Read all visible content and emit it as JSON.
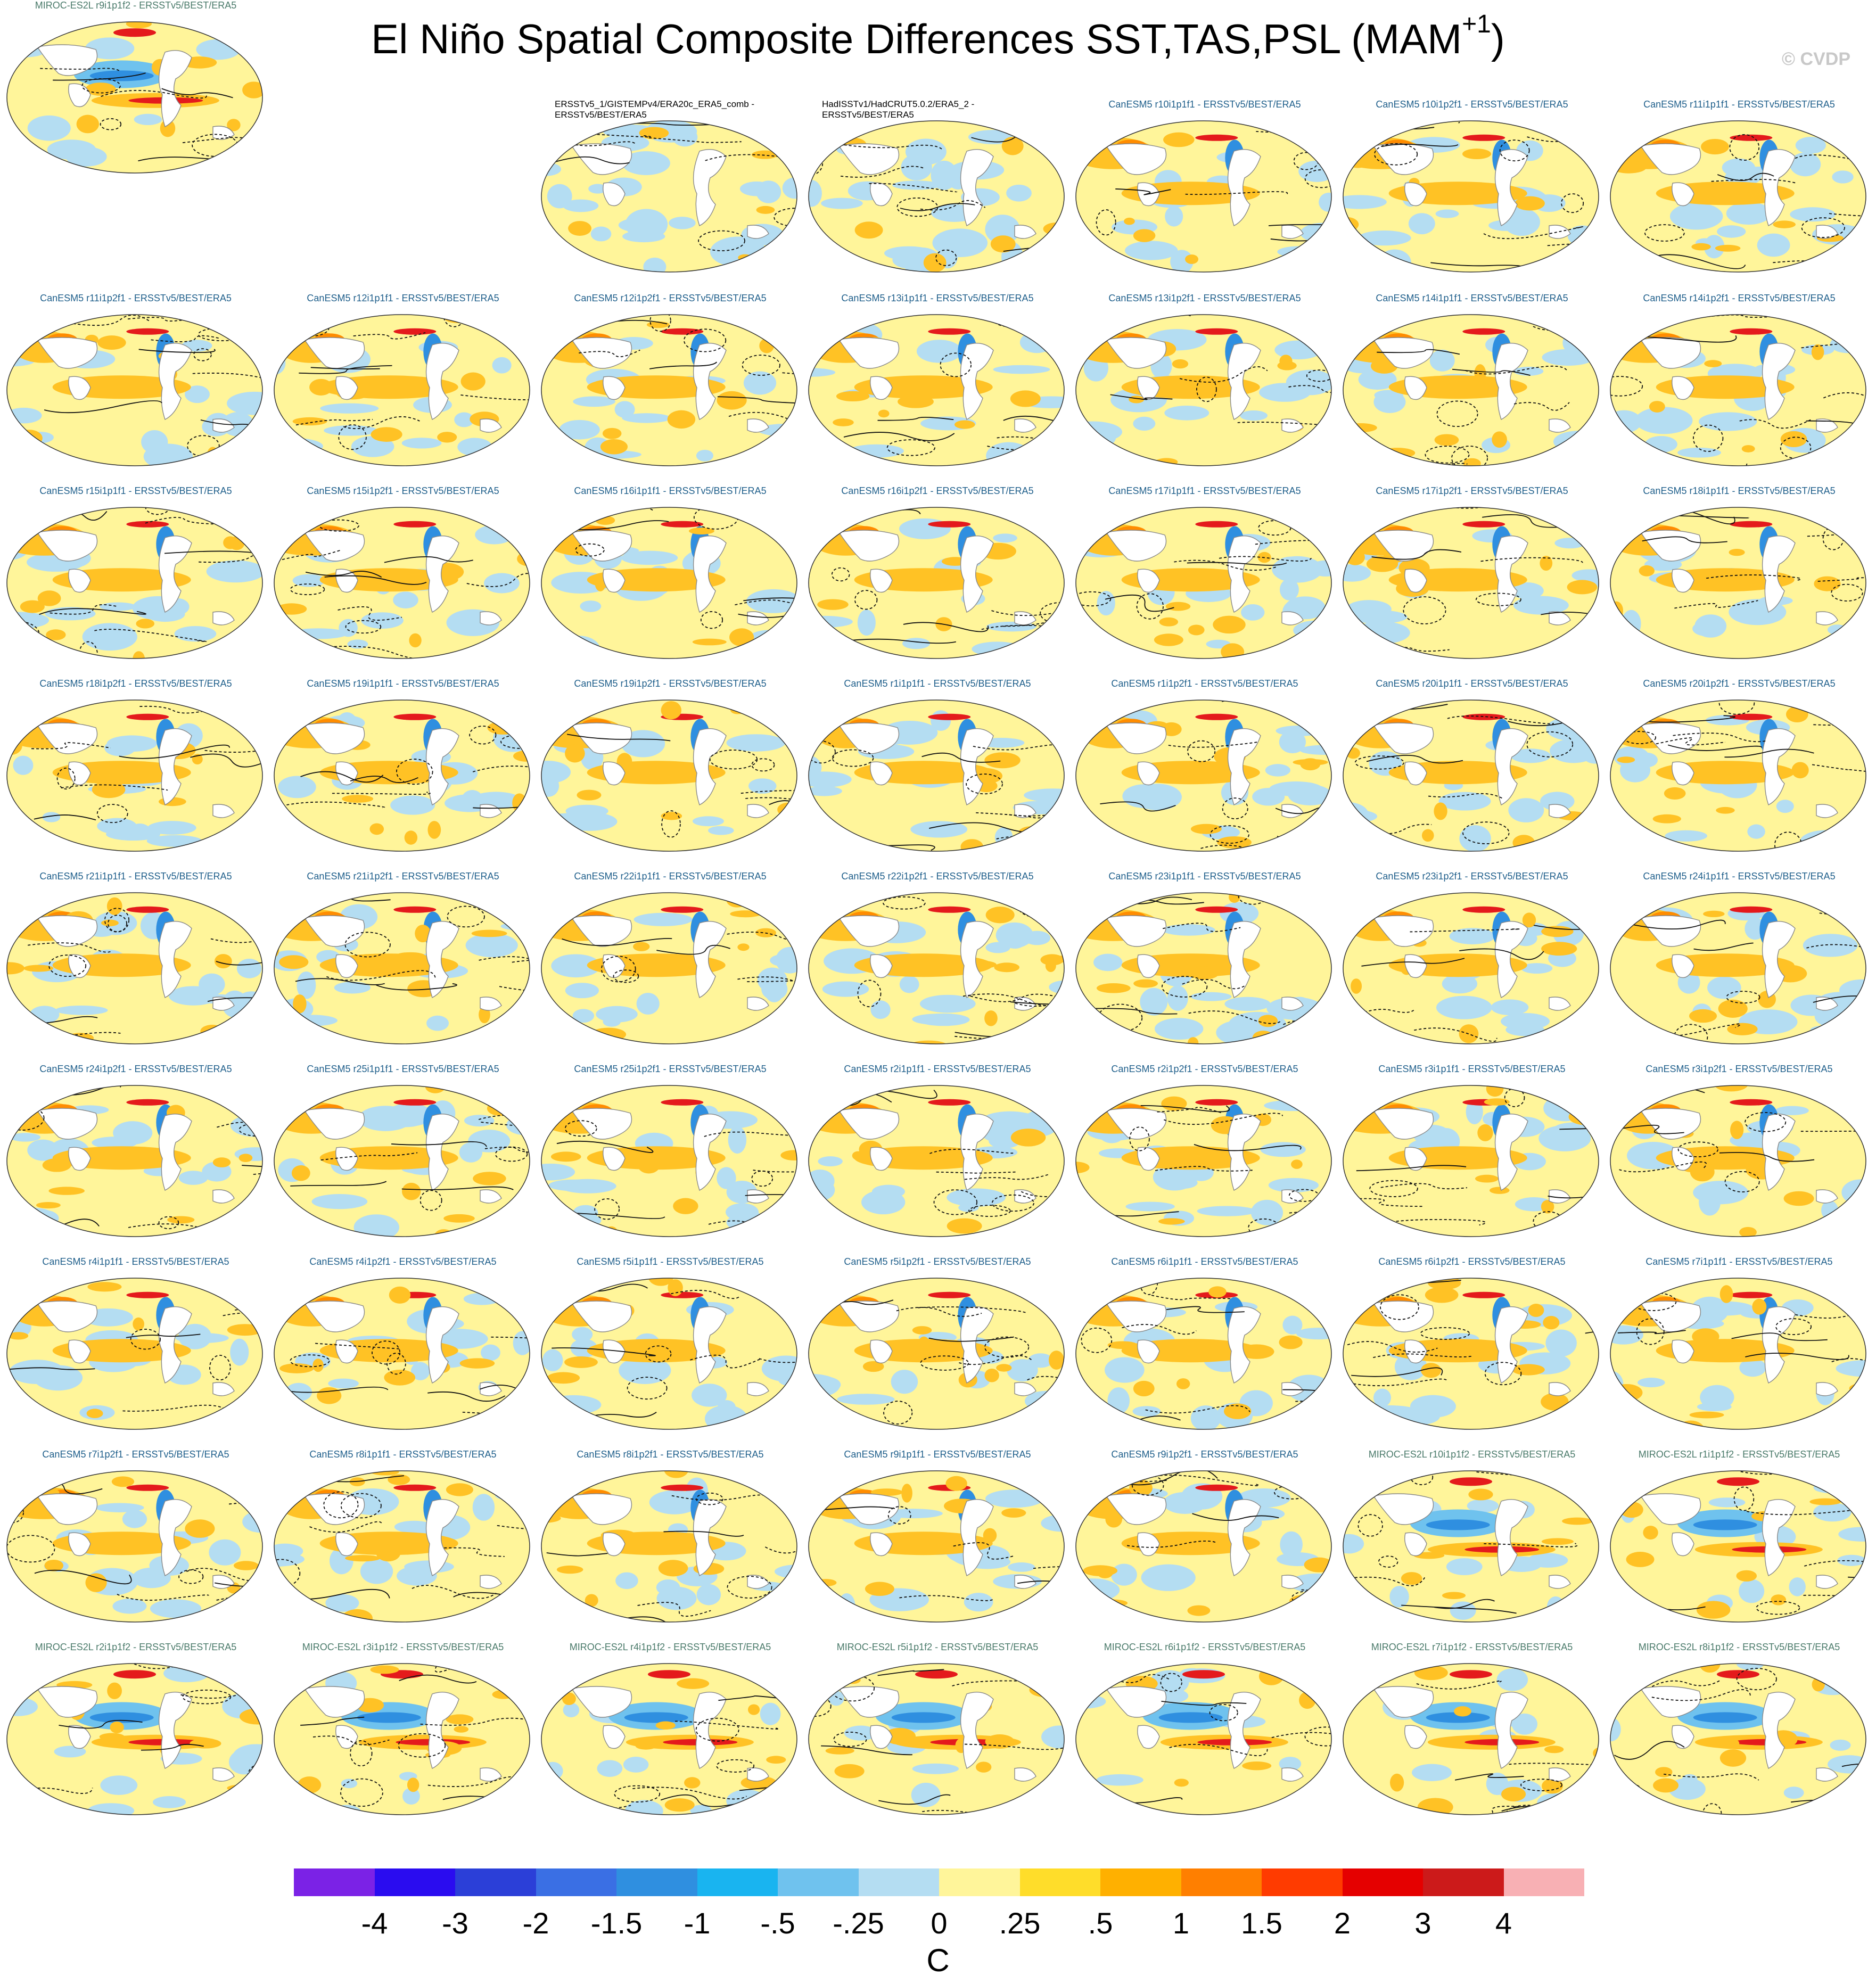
{
  "title_main": "El Niño Spatial Composite Differences SST,TAS,PSL (MAM",
  "title_sup": "+1",
  "title_close": ")",
  "watermark": "© CVDP",
  "panels": [
    {
      "label": "ERSSTv5_1/GISTEMPv4/ERA20c_ERA5_comb - ERSSTv5/BEST/ERA5",
      "group": "obs",
      "style": "obs"
    },
    {
      "label": "HadISSTv1/HadCRUT5.0.2/ERA5_2 - ERSSTv5/BEST/ERA5",
      "group": "obs",
      "style": "obs"
    },
    {
      "label": "CanESM5 r10i1p1f1 - ERSSTv5/BEST/ERA5",
      "group": "can",
      "style": "can"
    },
    {
      "label": "CanESM5 r10i1p2f1 - ERSSTv5/BEST/ERA5",
      "group": "can",
      "style": "can"
    },
    {
      "label": "CanESM5 r11i1p1f1 - ERSSTv5/BEST/ERA5",
      "group": "can",
      "style": "can"
    },
    {
      "label": "CanESM5 r11i1p2f1 - ERSSTv5/BEST/ERA5",
      "group": "can",
      "style": "can"
    },
    {
      "label": "CanESM5 r12i1p1f1 - ERSSTv5/BEST/ERA5",
      "group": "can",
      "style": "can"
    },
    {
      "label": "CanESM5 r12i1p2f1 - ERSSTv5/BEST/ERA5",
      "group": "can",
      "style": "can"
    },
    {
      "label": "CanESM5 r13i1p1f1 - ERSSTv5/BEST/ERA5",
      "group": "can",
      "style": "can"
    },
    {
      "label": "CanESM5 r13i1p2f1 - ERSSTv5/BEST/ERA5",
      "group": "can",
      "style": "can"
    },
    {
      "label": "CanESM5 r14i1p1f1 - ERSSTv5/BEST/ERA5",
      "group": "can",
      "style": "can"
    },
    {
      "label": "CanESM5 r14i1p2f1 - ERSSTv5/BEST/ERA5",
      "group": "can",
      "style": "can"
    },
    {
      "label": "CanESM5 r15i1p1f1 - ERSSTv5/BEST/ERA5",
      "group": "can",
      "style": "can"
    },
    {
      "label": "CanESM5 r15i1p2f1 - ERSSTv5/BEST/ERA5",
      "group": "can",
      "style": "can"
    },
    {
      "label": "CanESM5 r16i1p1f1 - ERSSTv5/BEST/ERA5",
      "group": "can",
      "style": "can"
    },
    {
      "label": "CanESM5 r16i1p2f1 - ERSSTv5/BEST/ERA5",
      "group": "can",
      "style": "can"
    },
    {
      "label": "CanESM5 r17i1p1f1 - ERSSTv5/BEST/ERA5",
      "group": "can",
      "style": "can"
    },
    {
      "label": "CanESM5 r17i1p2f1 - ERSSTv5/BEST/ERA5",
      "group": "can",
      "style": "can"
    },
    {
      "label": "CanESM5 r18i1p1f1 - ERSSTv5/BEST/ERA5",
      "group": "can",
      "style": "can"
    },
    {
      "label": "CanESM5 r18i1p2f1 - ERSSTv5/BEST/ERA5",
      "group": "can",
      "style": "can"
    },
    {
      "label": "CanESM5 r19i1p1f1 - ERSSTv5/BEST/ERA5",
      "group": "can",
      "style": "can"
    },
    {
      "label": "CanESM5 r19i1p2f1 - ERSSTv5/BEST/ERA5",
      "group": "can",
      "style": "can"
    },
    {
      "label": "CanESM5 r1i1p1f1 - ERSSTv5/BEST/ERA5",
      "group": "can",
      "style": "can"
    },
    {
      "label": "CanESM5 r1i1p2f1 - ERSSTv5/BEST/ERA5",
      "group": "can",
      "style": "can"
    },
    {
      "label": "CanESM5 r20i1p1f1 - ERSSTv5/BEST/ERA5",
      "group": "can",
      "style": "can"
    },
    {
      "label": "CanESM5 r20i1p2f1 - ERSSTv5/BEST/ERA5",
      "group": "can",
      "style": "can"
    },
    {
      "label": "CanESM5 r21i1p1f1 - ERSSTv5/BEST/ERA5",
      "group": "can",
      "style": "can"
    },
    {
      "label": "CanESM5 r21i1p2f1 - ERSSTv5/BEST/ERA5",
      "group": "can",
      "style": "can"
    },
    {
      "label": "CanESM5 r22i1p1f1 - ERSSTv5/BEST/ERA5",
      "group": "can",
      "style": "can"
    },
    {
      "label": "CanESM5 r22i1p2f1 - ERSSTv5/BEST/ERA5",
      "group": "can",
      "style": "can"
    },
    {
      "label": "CanESM5 r23i1p1f1 - ERSSTv5/BEST/ERA5",
      "group": "can",
      "style": "can"
    },
    {
      "label": "CanESM5 r23i1p2f1 - ERSSTv5/BEST/ERA5",
      "group": "can",
      "style": "can"
    },
    {
      "label": "CanESM5 r24i1p1f1 - ERSSTv5/BEST/ERA5",
      "group": "can",
      "style": "can"
    },
    {
      "label": "CanESM5 r24i1p2f1 - ERSSTv5/BEST/ERA5",
      "group": "can",
      "style": "can"
    },
    {
      "label": "CanESM5 r25i1p1f1 - ERSSTv5/BEST/ERA5",
      "group": "can",
      "style": "can"
    },
    {
      "label": "CanESM5 r25i1p2f1 - ERSSTv5/BEST/ERA5",
      "group": "can",
      "style": "can"
    },
    {
      "label": "CanESM5 r2i1p1f1 - ERSSTv5/BEST/ERA5",
      "group": "can",
      "style": "can"
    },
    {
      "label": "CanESM5 r2i1p2f1 - ERSSTv5/BEST/ERA5",
      "group": "can",
      "style": "can"
    },
    {
      "label": "CanESM5 r3i1p1f1 - ERSSTv5/BEST/ERA5",
      "group": "can",
      "style": "can"
    },
    {
      "label": "CanESM5 r3i1p2f1 - ERSSTv5/BEST/ERA5",
      "group": "can",
      "style": "can"
    },
    {
      "label": "CanESM5 r4i1p1f1 - ERSSTv5/BEST/ERA5",
      "group": "can",
      "style": "can"
    },
    {
      "label": "CanESM5 r4i1p2f1 - ERSSTv5/BEST/ERA5",
      "group": "can",
      "style": "can"
    },
    {
      "label": "CanESM5 r5i1p1f1 - ERSSTv5/BEST/ERA5",
      "group": "can",
      "style": "can"
    },
    {
      "label": "CanESM5 r5i1p2f1 - ERSSTv5/BEST/ERA5",
      "group": "can",
      "style": "can"
    },
    {
      "label": "CanESM5 r6i1p1f1 - ERSSTv5/BEST/ERA5",
      "group": "can",
      "style": "can"
    },
    {
      "label": "CanESM5 r6i1p2f1 - ERSSTv5/BEST/ERA5",
      "group": "can",
      "style": "can"
    },
    {
      "label": "CanESM5 r7i1p1f1 - ERSSTv5/BEST/ERA5",
      "group": "can",
      "style": "can"
    },
    {
      "label": "CanESM5 r7i1p2f1 - ERSSTv5/BEST/ERA5",
      "group": "can",
      "style": "can"
    },
    {
      "label": "CanESM5 r8i1p1f1 - ERSSTv5/BEST/ERA5",
      "group": "can",
      "style": "can"
    },
    {
      "label": "CanESM5 r8i1p2f1 - ERSSTv5/BEST/ERA5",
      "group": "can",
      "style": "can"
    },
    {
      "label": "CanESM5 r9i1p1f1 - ERSSTv5/BEST/ERA5",
      "group": "can",
      "style": "can"
    },
    {
      "label": "CanESM5 r9i1p2f1 - ERSSTv5/BEST/ERA5",
      "group": "can",
      "style": "can"
    },
    {
      "label": "MIROC-ES2L r10i1p1f2 - ERSSTv5/BEST/ERA5",
      "group": "mir",
      "style": "mir"
    },
    {
      "label": "MIROC-ES2L r1i1p1f2 - ERSSTv5/BEST/ERA5",
      "group": "mir",
      "style": "mir"
    },
    {
      "label": "MIROC-ES2L r2i1p1f2 - ERSSTv5/BEST/ERA5",
      "group": "mir",
      "style": "mir"
    },
    {
      "label": "MIROC-ES2L r3i1p1f2 - ERSSTv5/BEST/ERA5",
      "group": "mir",
      "style": "mir"
    },
    {
      "label": "MIROC-ES2L r4i1p1f2 - ERSSTv5/BEST/ERA5",
      "group": "mir",
      "style": "mir"
    },
    {
      "label": "MIROC-ES2L r5i1p1f2 - ERSSTv5/BEST/ERA5",
      "group": "mir",
      "style": "mir"
    },
    {
      "label": "MIROC-ES2L r6i1p1f2 - ERSSTv5/BEST/ERA5",
      "group": "mir",
      "style": "mir"
    },
    {
      "label": "MIROC-ES2L r7i1p1f2 - ERSSTv5/BEST/ERA5",
      "group": "mir",
      "style": "mir"
    },
    {
      "label": "MIROC-ES2L r8i1p1f2 - ERSSTv5/BEST/ERA5",
      "group": "mir",
      "style": "mir"
    },
    {
      "label": "MIROC-ES2L r9i1p1f2 - ERSSTv5/BEST/ERA5",
      "group": "mir",
      "style": "mir"
    }
  ],
  "colors": {
    "base_yellow": "#fff59a",
    "light_blue": "#b4ddf2",
    "mid_blue": "#6fc2ee",
    "blue": "#2f8fe0",
    "orange": "#ffc225",
    "deep_orange": "#ff8c00",
    "red": "#e41a1c",
    "label_can": "#1f5f8b",
    "label_mir": "#4a7a6a"
  },
  "colorbar": {
    "swatches": [
      "#7b22e6",
      "#2a0cf0",
      "#2b3fd8",
      "#3a6fe4",
      "#2f8fe0",
      "#19b4f0",
      "#6fc2ee",
      "#b4ddf2",
      "#fff59a",
      "#ffdd2a",
      "#ffb000",
      "#ff7f00",
      "#ff3b00",
      "#e50000",
      "#cc1a1a",
      "#f8b0b4"
    ],
    "tick_labels": [
      "-4",
      "-3",
      "-2",
      "-1.5",
      "-1",
      "-.5",
      "-.25",
      "0",
      ".25",
      ".5",
      "1",
      "1.5",
      "2",
      "3",
      "4"
    ],
    "units": "C"
  }
}
